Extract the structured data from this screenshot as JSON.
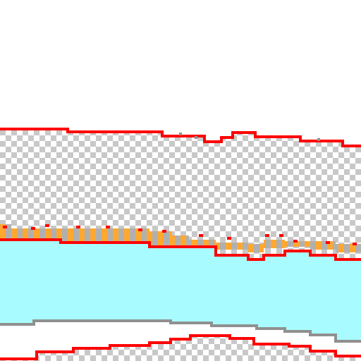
{
  "canvas": {
    "background": "#ffffff",
    "checker_light": "#ffffff",
    "checker_dark": "#c8c8c8",
    "fill_color": "#a8fcff",
    "edge_red": "#ff0000",
    "edge_orange": "#ffa830",
    "edge_gray": "#909090"
  }
}
